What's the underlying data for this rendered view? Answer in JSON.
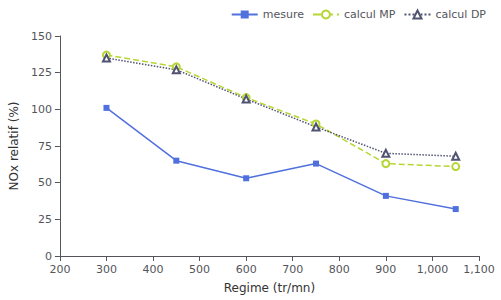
{
  "chart_data": {
    "type": "line",
    "x": [
      300,
      450,
      600,
      750,
      900,
      1050
    ],
    "series": [
      {
        "name": "mesure",
        "values": [
          101,
          65,
          53,
          63,
          41,
          32
        ],
        "marker": "square",
        "line_style": "solid"
      },
      {
        "name": "calcul MP",
        "values": [
          137,
          129,
          108,
          90,
          63,
          61
        ],
        "marker": "circle",
        "line_style": "dashed"
      },
      {
        "name": "calcul DP",
        "values": [
          135,
          127,
          107,
          88,
          70,
          68
        ],
        "marker": "triangle",
        "line_style": "dotted"
      }
    ],
    "xlabel": "Regime (tr/mn)",
    "ylabel": "NOx relatif (%)",
    "xlim": [
      200,
      1100
    ],
    "ylim": [
      0,
      150
    ],
    "xticks": [
      200,
      300,
      400,
      500,
      600,
      700,
      800,
      900,
      1000,
      1100
    ],
    "yticks": [
      0,
      25,
      50,
      75,
      100,
      125,
      150
    ],
    "grid": false,
    "legend": "upper right"
  }
}
